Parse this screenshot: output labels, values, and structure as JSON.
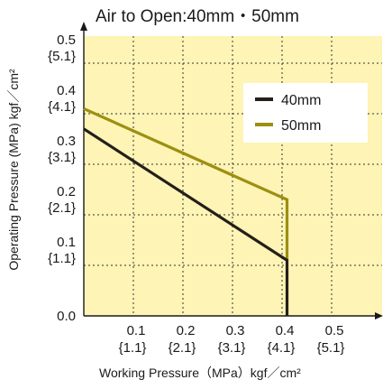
{
  "chart_data": {
    "type": "line",
    "title": "Air to Open:40mm・50mm",
    "xlabel": "Working Pressure（MPa）kgf／cm²",
    "ylabel": "Operating Pressure (MPa) kgf／cm²",
    "xlim": [
      0,
      0.6
    ],
    "ylim": [
      0,
      0.6
    ],
    "grid": true,
    "legend_position": "right",
    "x_ticks": [
      {
        "value": 0.1,
        "label": "0.1",
        "sub": "{1.1}"
      },
      {
        "value": 0.2,
        "label": "0.2",
        "sub": "{2.1}"
      },
      {
        "value": 0.3,
        "label": "0.3",
        "sub": "{3.1}"
      },
      {
        "value": 0.4,
        "label": "0.4",
        "sub": "{4.1}"
      },
      {
        "value": 0.5,
        "label": "0.5",
        "sub": "{5.1}"
      }
    ],
    "y_ticks": [
      {
        "value": 0.0,
        "label": "0.0",
        "sub": ""
      },
      {
        "value": 0.1,
        "label": "0.1",
        "sub": "{1.1}"
      },
      {
        "value": 0.2,
        "label": "0.2",
        "sub": "{2.1}"
      },
      {
        "value": 0.3,
        "label": "0.3",
        "sub": "{3.1}"
      },
      {
        "value": 0.4,
        "label": "0.4",
        "sub": "{4.1}"
      },
      {
        "value": 0.5,
        "label": "0.5",
        "sub": "{5.1}"
      }
    ],
    "series": [
      {
        "name": "40mm",
        "color": "#231f1a",
        "x": [
          0.0,
          0.41,
          0.41
        ],
        "y": [
          0.37,
          0.11,
          0.0
        ]
      },
      {
        "name": "50mm",
        "color": "#9c8f12",
        "x": [
          0.0,
          0.41,
          0.41
        ],
        "y": [
          0.41,
          0.23,
          0.11
        ]
      }
    ],
    "colors": {
      "plot_background": "#fdf4b5",
      "grid": "#333333",
      "axis": "#1a1a1a"
    }
  }
}
